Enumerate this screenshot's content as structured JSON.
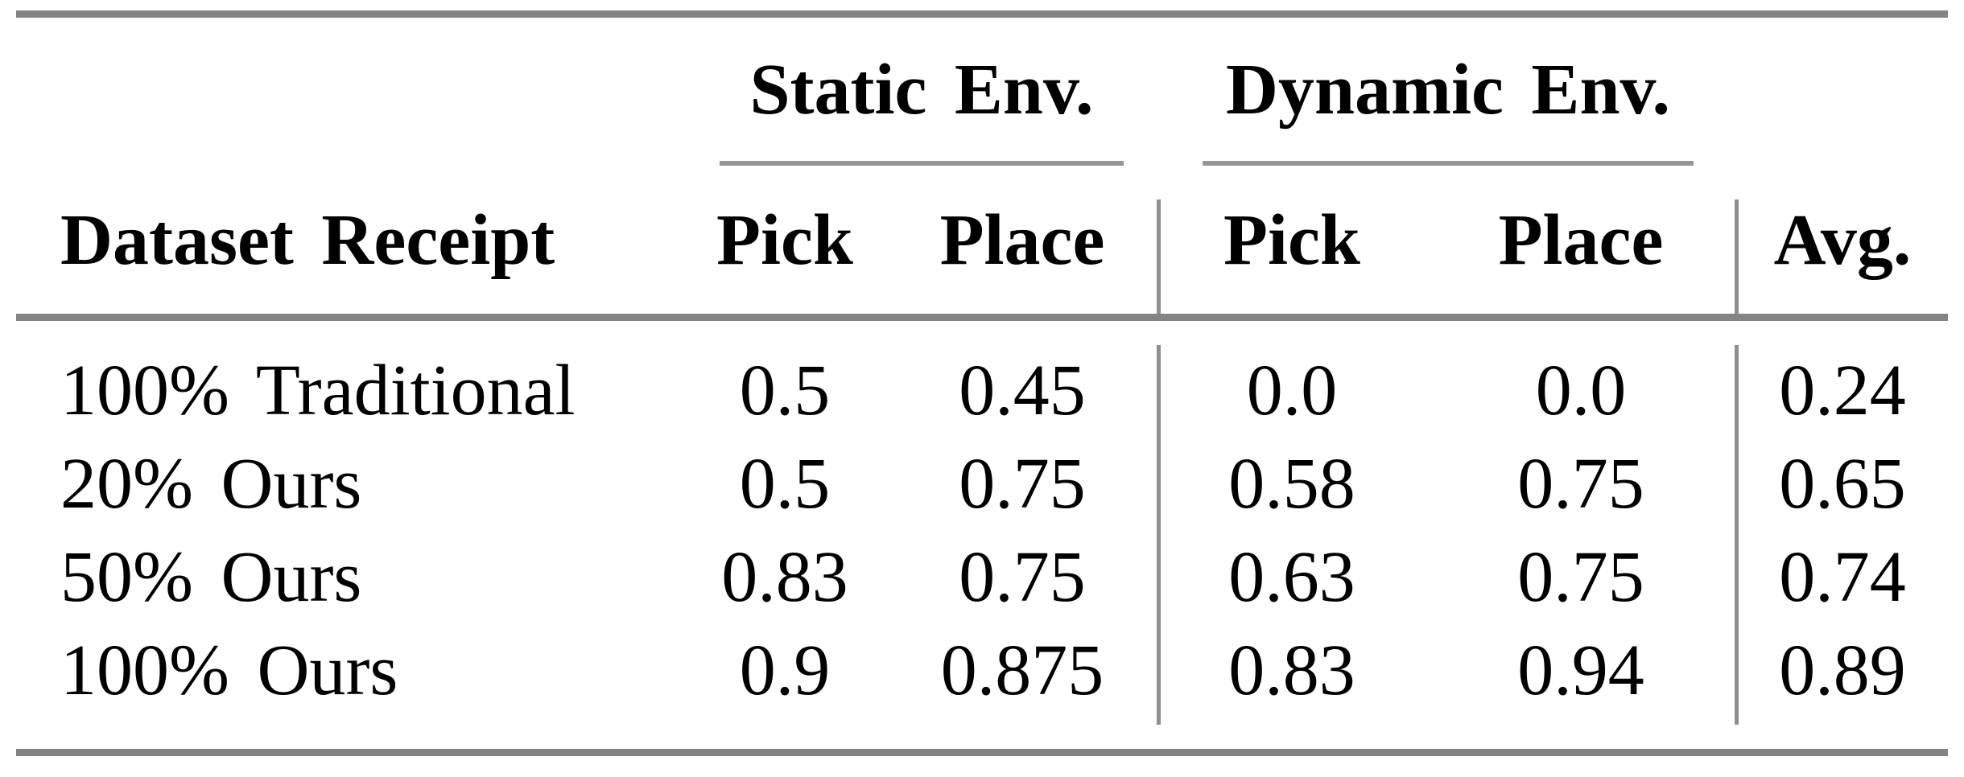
{
  "figure": {
    "type": "academic-results-table"
  },
  "table": {
    "groups": [
      {
        "label": "Static Env."
      },
      {
        "label": "Dynamic Env."
      }
    ],
    "columns": [
      "Dataset Receipt",
      "Pick",
      "Place",
      "Pick",
      "Place",
      "Avg."
    ],
    "rows": [
      {
        "label": "100% Traditional",
        "values": [
          "0.5",
          "0.45",
          "0.0",
          "0.0",
          "0.24"
        ]
      },
      {
        "label": "20% Ours",
        "values": [
          "0.5",
          "0.75",
          "0.58",
          "0.75",
          "0.65"
        ]
      },
      {
        "label": "50% Ours",
        "values": [
          "0.83",
          "0.75",
          "0.63",
          "0.75",
          "0.74"
        ]
      },
      {
        "label": "100% Ours",
        "values": [
          "0.9",
          "0.875",
          "0.83",
          "0.94",
          "0.89"
        ]
      }
    ]
  },
  "colors": {
    "thick_rule_gray": "#848484",
    "cmidrule_gray": "#969696",
    "vertical_rule_gray": "#8f8f8f",
    "text": "#000000",
    "background": "#ffffff"
  },
  "chart_data": {
    "type": "table",
    "title": "",
    "column_groups": [
      "",
      "Static Env.",
      "Static Env.",
      "Dynamic Env.",
      "Dynamic Env.",
      ""
    ],
    "columns": [
      "Dataset Receipt",
      "Pick",
      "Place",
      "Pick",
      "Place",
      "Avg."
    ],
    "rows": [
      [
        "100% Traditional",
        0.5,
        0.45,
        0.0,
        0.0,
        0.24
      ],
      [
        "20% Ours",
        0.5,
        0.75,
        0.58,
        0.75,
        0.65
      ],
      [
        "50% Ours",
        0.83,
        0.75,
        0.63,
        0.75,
        0.74
      ],
      [
        "100% Ours",
        0.9,
        0.875,
        0.83,
        0.94,
        0.89
      ]
    ]
  }
}
